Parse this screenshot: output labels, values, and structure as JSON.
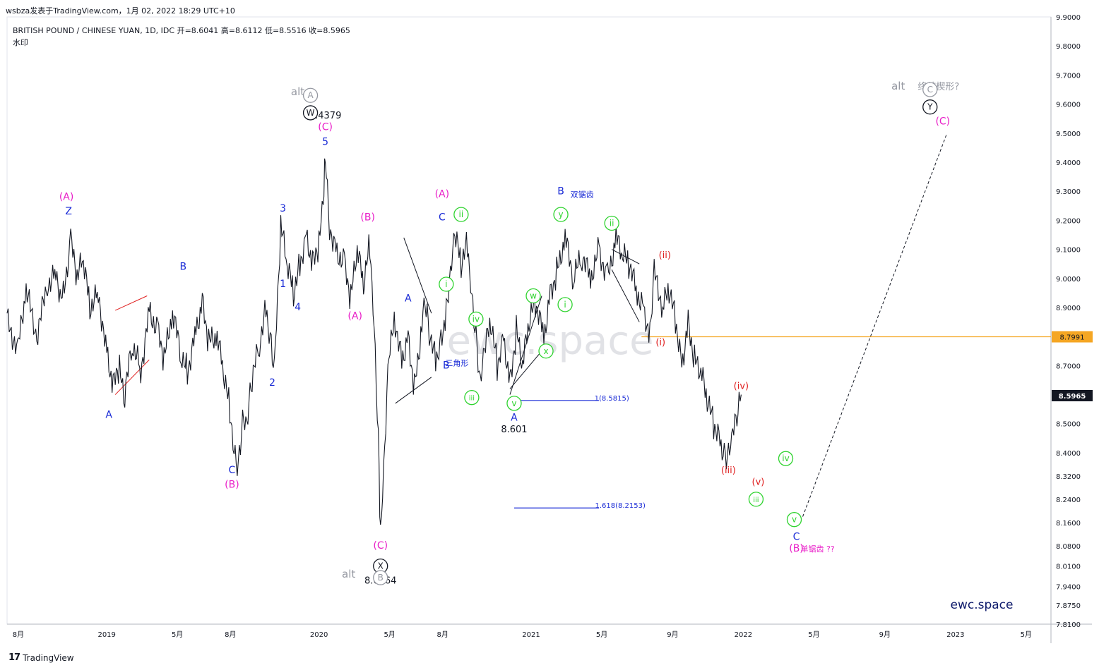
{
  "header": {
    "publish_line": "wsbza发表于TradingView.com，1月 02, 2022 18:29 UTC+10",
    "symbol_line": "BRITISH POUND / CHINESE YUAN, 1D, IDC  开=8.6041  高=8.6112  低=8.5516  收=8.5965",
    "watermark_label": "水印"
  },
  "footer": {
    "brand": "TradingView",
    "logo": "17"
  },
  "watermark": "ewc.space",
  "brand_corner": "ewc.space",
  "colors": {
    "price": "#131722",
    "blue": "#1a2bd6",
    "magenta": "#e91ec8",
    "green": "#2ed32e",
    "red": "#e02020",
    "gray": "#9598a1",
    "orange": "#f5a623"
  },
  "chart_data": {
    "type": "line",
    "title": "",
    "symbol": "BRITISH POUND / CHINESE YUAN",
    "interval": "1D",
    "source": "IDC",
    "ohlc": {
      "open": 8.6041,
      "high": 8.6112,
      "low": 8.5516,
      "close": 8.5965
    },
    "ylim": [
      7.81,
      9.9
    ],
    "y_ticks": [
      9.9,
      9.8,
      9.7,
      9.6,
      9.5,
      9.4,
      9.3,
      9.2,
      9.1,
      9.0,
      8.9,
      8.8,
      8.7,
      8.6,
      8.5,
      8.4,
      8.32,
      8.24,
      8.16,
      8.08,
      8.01,
      7.94,
      7.875,
      7.81
    ],
    "y_tick_labels": [
      "9.9000",
      "9.8000",
      "9.7000",
      "9.6000",
      "9.5000",
      "9.4000",
      "9.3000",
      "9.2000",
      "9.1000",
      "9.0000",
      "8.9000",
      "8.8000",
      "8.7000",
      "8.6000",
      "8.5000",
      "8.4000",
      "8.3200",
      "8.2400",
      "8.1600",
      "8.0800",
      "8.0100",
      "7.9400",
      "7.8750",
      "7.8100"
    ],
    "x_ticks": [
      {
        "t": 2018.583,
        "label": "8月"
      },
      {
        "t": 2019.0,
        "label": "2019"
      },
      {
        "t": 2019.333,
        "label": "5月"
      },
      {
        "t": 2019.583,
        "label": "8月"
      },
      {
        "t": 2020.0,
        "label": "2020"
      },
      {
        "t": 2020.333,
        "label": "5月"
      },
      {
        "t": 2020.583,
        "label": "8月"
      },
      {
        "t": 2021.0,
        "label": "2021"
      },
      {
        "t": 2021.333,
        "label": "5月"
      },
      {
        "t": 2021.667,
        "label": "9月"
      },
      {
        "t": 2022.0,
        "label": "2022"
      },
      {
        "t": 2022.333,
        "label": "5月"
      },
      {
        "t": 2022.667,
        "label": "9月"
      },
      {
        "t": 2023.0,
        "label": "2023"
      },
      {
        "t": 2023.333,
        "label": "5月"
      }
    ],
    "xlim": [
      2018.53,
      2023.45
    ],
    "series": [
      {
        "values": [
          [
            2018.53,
            8.86
          ],
          [
            2018.58,
            8.75
          ],
          [
            2018.62,
            8.96
          ],
          [
            2018.67,
            8.8
          ],
          [
            2018.72,
            8.98
          ],
          [
            2018.76,
            9.02
          ],
          [
            2018.79,
            8.92
          ],
          [
            2018.83,
            9.13
          ],
          [
            2018.86,
            9.0
          ],
          [
            2018.89,
            9.07
          ],
          [
            2018.92,
            8.9
          ],
          [
            2018.96,
            8.95
          ],
          [
            2019.0,
            8.74
          ],
          [
            2019.03,
            8.63
          ],
          [
            2019.06,
            8.7
          ],
          [
            2019.08,
            8.57
          ],
          [
            2019.12,
            8.78
          ],
          [
            2019.16,
            8.68
          ],
          [
            2019.2,
            8.89
          ],
          [
            2019.24,
            8.82
          ],
          [
            2019.27,
            8.72
          ],
          [
            2019.31,
            8.88
          ],
          [
            2019.35,
            8.74
          ],
          [
            2019.38,
            8.68
          ],
          [
            2019.42,
            8.82
          ],
          [
            2019.45,
            8.92
          ],
          [
            2019.48,
            8.78
          ],
          [
            2019.52,
            8.8
          ],
          [
            2019.55,
            8.68
          ],
          [
            2019.58,
            8.55
          ],
          [
            2019.6,
            8.42
          ],
          [
            2019.62,
            8.35
          ],
          [
            2019.64,
            8.5
          ],
          [
            2019.66,
            8.48
          ],
          [
            2019.68,
            8.63
          ],
          [
            2019.72,
            8.78
          ],
          [
            2019.75,
            8.9
          ],
          [
            2019.77,
            8.8
          ],
          [
            2019.79,
            8.68
          ],
          [
            2019.82,
            9.18
          ],
          [
            2019.85,
            9.05
          ],
          [
            2019.88,
            8.95
          ],
          [
            2019.91,
            9.05
          ],
          [
            2019.94,
            9.15
          ],
          [
            2019.97,
            9.05
          ],
          [
            2020.0,
            9.12
          ],
          [
            2020.02,
            9.25
          ],
          [
            2020.03,
            9.44
          ],
          [
            2020.05,
            9.18
          ],
          [
            2020.08,
            9.1
          ],
          [
            2020.12,
            9.05
          ],
          [
            2020.15,
            8.93
          ],
          [
            2020.18,
            9.1
          ],
          [
            2020.21,
            8.98
          ],
          [
            2020.24,
            9.12
          ],
          [
            2020.26,
            8.85
          ],
          [
            2020.28,
            8.45
          ],
          [
            2020.29,
            8.1
          ],
          [
            2020.31,
            8.4
          ],
          [
            2020.33,
            8.75
          ],
          [
            2020.36,
            8.85
          ],
          [
            2020.39,
            8.72
          ],
          [
            2020.42,
            8.8
          ],
          [
            2020.45,
            8.62
          ],
          [
            2020.48,
            8.8
          ],
          [
            2020.5,
            8.92
          ],
          [
            2020.52,
            8.82
          ],
          [
            2020.55,
            8.72
          ],
          [
            2020.57,
            8.78
          ],
          [
            2020.6,
            8.88
          ],
          [
            2020.62,
            9.0
          ],
          [
            2020.64,
            9.15
          ],
          [
            2020.67,
            9.05
          ],
          [
            2020.7,
            9.12
          ],
          [
            2020.72,
            8.95
          ],
          [
            2020.74,
            8.8
          ],
          [
            2020.76,
            8.62
          ],
          [
            2020.78,
            8.75
          ],
          [
            2020.81,
            8.85
          ],
          [
            2020.84,
            8.7
          ],
          [
            2020.87,
            8.8
          ],
          [
            2020.9,
            8.64
          ],
          [
            2020.93,
            8.82
          ],
          [
            2020.96,
            8.7
          ],
          [
            2020.99,
            8.85
          ],
          [
            2021.02,
            8.92
          ],
          [
            2021.06,
            8.8
          ],
          [
            2021.09,
            8.95
          ],
          [
            2021.12,
            9.02
          ],
          [
            2021.16,
            9.14
          ],
          [
            2021.2,
            9.0
          ],
          [
            2021.24,
            9.08
          ],
          [
            2021.28,
            9.0
          ],
          [
            2021.32,
            9.1
          ],
          [
            2021.36,
            9.0
          ],
          [
            2021.4,
            9.14
          ],
          [
            2021.43,
            9.08
          ],
          [
            2021.46,
            9.05
          ],
          [
            2021.5,
            8.95
          ],
          [
            2021.53,
            8.9
          ],
          [
            2021.56,
            8.8
          ],
          [
            2021.58,
            9.02
          ],
          [
            2021.62,
            8.9
          ],
          [
            2021.65,
            8.96
          ],
          [
            2021.68,
            8.86
          ],
          [
            2021.71,
            8.7
          ],
          [
            2021.74,
            8.85
          ],
          [
            2021.77,
            8.72
          ],
          [
            2021.8,
            8.68
          ],
          [
            2021.83,
            8.58
          ],
          [
            2021.86,
            8.5
          ],
          [
            2021.89,
            8.44
          ],
          [
            2021.91,
            8.4
          ],
          [
            2021.93,
            8.38
          ],
          [
            2021.95,
            8.46
          ],
          [
            2021.97,
            8.52
          ],
          [
            2021.99,
            8.6
          ]
        ]
      }
    ],
    "annotations": [
      {
        "text": "9.4379",
        "t": 2020.03,
        "y": 9.55,
        "color": "#131722",
        "size": 13
      },
      {
        "text": "8.0964",
        "t": 2020.29,
        "y": 7.95,
        "color": "#131722",
        "size": 13
      },
      {
        "text": "8.601",
        "t": 2020.92,
        "y": 8.47,
        "color": "#131722",
        "size": 13
      },
      {
        "text": "Z",
        "t": 2018.82,
        "y": 9.22,
        "color": "#1a2bd6",
        "size": 14
      },
      {
        "text": "(A)",
        "t": 2018.81,
        "y": 9.27,
        "color": "#e91ec8",
        "size": 14
      },
      {
        "text": "A",
        "t": 2019.01,
        "y": 8.52,
        "color": "#1a2bd6",
        "size": 14
      },
      {
        "text": "B",
        "t": 2019.36,
        "y": 9.03,
        "color": "#1a2bd6",
        "size": 14
      },
      {
        "text": "C",
        "t": 2019.59,
        "y": 8.33,
        "color": "#1a2bd6",
        "size": 14
      },
      {
        "text": "(B)",
        "t": 2019.59,
        "y": 8.28,
        "color": "#e91ec8",
        "size": 14
      },
      {
        "text": "1",
        "t": 2019.83,
        "y": 8.97,
        "color": "#1a2bd6",
        "size": 14
      },
      {
        "text": "2",
        "t": 2019.78,
        "y": 8.63,
        "color": "#1a2bd6",
        "size": 14
      },
      {
        "text": "3",
        "t": 2019.83,
        "y": 9.23,
        "color": "#1a2bd6",
        "size": 14
      },
      {
        "text": "4",
        "t": 2019.9,
        "y": 8.89,
        "color": "#1a2bd6",
        "size": 14
      },
      {
        "text": "5",
        "t": 2020.03,
        "y": 9.46,
        "color": "#1a2bd6",
        "size": 14
      },
      {
        "text": "(C)",
        "t": 2020.03,
        "y": 9.51,
        "color": "#e91ec8",
        "size": 14
      },
      {
        "text": "(A)",
        "t": 2020.17,
        "y": 8.86,
        "color": "#e91ec8",
        "size": 14
      },
      {
        "text": "(B)",
        "t": 2020.23,
        "y": 9.2,
        "color": "#e91ec8",
        "size": 14
      },
      {
        "text": "(C)",
        "t": 2020.29,
        "y": 8.07,
        "color": "#e91ec8",
        "size": 14
      },
      {
        "text": "A",
        "t": 2020.42,
        "y": 8.92,
        "color": "#1a2bd6",
        "size": 14
      },
      {
        "text": "B",
        "t": 2020.6,
        "y": 8.69,
        "color": "#1a2bd6",
        "size": 14
      },
      {
        "text": "三角形",
        "t": 2020.65,
        "y": 8.7,
        "color": "#1a2bd6",
        "size": 11
      },
      {
        "text": "C",
        "t": 2020.58,
        "y": 9.2,
        "color": "#1a2bd6",
        "size": 14
      },
      {
        "text": "(A)",
        "t": 2020.58,
        "y": 9.28,
        "color": "#e91ec8",
        "size": 14
      },
      {
        "text": "A",
        "t": 2020.92,
        "y": 8.51,
        "color": "#1a2bd6",
        "size": 14
      },
      {
        "text": "B",
        "t": 2021.14,
        "y": 9.29,
        "color": "#1a2bd6",
        "size": 14
      },
      {
        "text": "双锯齿",
        "t": 2021.24,
        "y": 9.28,
        "color": "#1a2bd6",
        "size": 11
      },
      {
        "text": "C",
        "t": 2022.25,
        "y": 8.1,
        "color": "#1a2bd6",
        "size": 14
      },
      {
        "text": "(B)",
        "t": 2022.25,
        "y": 8.06,
        "color": "#e91ec8",
        "size": 14
      },
      {
        "text": "单锯齿 ??",
        "t": 2022.35,
        "y": 8.06,
        "color": "#e91ec8",
        "size": 11
      },
      {
        "text": "(C)",
        "t": 2022.94,
        "y": 9.53,
        "color": "#e91ec8",
        "size": 14
      },
      {
        "text": "alt",
        "t": 2019.9,
        "y": 9.63,
        "color": "#9598a1",
        "size": 15
      },
      {
        "text": "alt",
        "t": 2020.14,
        "y": 7.97,
        "color": "#9598a1",
        "size": 15
      },
      {
        "text": "alt",
        "t": 2022.73,
        "y": 9.65,
        "color": "#9598a1",
        "size": 15
      },
      {
        "text": "终结楔形?",
        "t": 2022.92,
        "y": 9.65,
        "color": "#9598a1",
        "size": 13
      },
      {
        "text": "(i)",
        "t": 2021.61,
        "y": 8.77,
        "color": "#e02020",
        "size": 13
      },
      {
        "text": "(ii)",
        "t": 2021.63,
        "y": 9.07,
        "color": "#e02020",
        "size": 13
      },
      {
        "text": "(iii)",
        "t": 2021.93,
        "y": 8.33,
        "color": "#e02020",
        "size": 13
      },
      {
        "text": "(iv)",
        "t": 2021.99,
        "y": 8.62,
        "color": "#e02020",
        "size": 13
      },
      {
        "text": "(v)",
        "t": 2022.07,
        "y": 8.29,
        "color": "#e02020",
        "size": 13
      },
      {
        "text": "1(8.5815)",
        "t": 2021.38,
        "y": 8.58,
        "color": "#1a2bd6",
        "size": 10
      },
      {
        "text": "1.618(8.2153)",
        "t": 2021.42,
        "y": 8.21,
        "color": "#1a2bd6",
        "size": 10
      }
    ],
    "circled_labels": [
      {
        "text": "A",
        "t": 2019.96,
        "y": 9.63,
        "color": "#9598a1"
      },
      {
        "text": "W",
        "t": 2019.96,
        "y": 9.57,
        "color": "#131722"
      },
      {
        "text": "X",
        "t": 2020.29,
        "y": 8.01,
        "color": "#131722"
      },
      {
        "text": "B",
        "t": 2020.29,
        "y": 7.97,
        "color": "#9598a1"
      },
      {
        "text": "C",
        "t": 2022.88,
        "y": 9.65,
        "color": "#9598a1"
      },
      {
        "text": "Y",
        "t": 2022.88,
        "y": 9.59,
        "color": "#131722"
      },
      {
        "text": "ii",
        "t": 2020.67,
        "y": 9.22,
        "color": "#2ed32e"
      },
      {
        "text": "i",
        "t": 2020.6,
        "y": 8.98,
        "color": "#2ed32e"
      },
      {
        "text": "iv",
        "t": 2020.74,
        "y": 8.86,
        "color": "#2ed32e"
      },
      {
        "text": "iii",
        "t": 2020.72,
        "y": 8.59,
        "color": "#2ed32e"
      },
      {
        "text": "v",
        "t": 2020.92,
        "y": 8.57,
        "color": "#2ed32e"
      },
      {
        "text": "w",
        "t": 2021.01,
        "y": 8.94,
        "color": "#2ed32e"
      },
      {
        "text": "x",
        "t": 2021.07,
        "y": 8.75,
        "color": "#2ed32e"
      },
      {
        "text": "y",
        "t": 2021.14,
        "y": 9.22,
        "color": "#2ed32e"
      },
      {
        "text": "i",
        "t": 2021.16,
        "y": 8.91,
        "color": "#2ed32e"
      },
      {
        "text": "ii",
        "t": 2021.38,
        "y": 9.19,
        "color": "#2ed32e"
      },
      {
        "text": "iv",
        "t": 2022.2,
        "y": 8.38,
        "color": "#2ed32e"
      },
      {
        "text": "iii",
        "t": 2022.06,
        "y": 8.24,
        "color": "#2ed32e"
      },
      {
        "text": "v",
        "t": 2022.24,
        "y": 8.17,
        "color": "#2ed32e"
      }
    ],
    "trend_lines": [
      {
        "from": [
          2019.04,
          8.6
        ],
        "to": [
          2019.2,
          8.72
        ],
        "color": "#e02020"
      },
      {
        "from": [
          2019.04,
          8.89
        ],
        "to": [
          2019.19,
          8.94
        ],
        "color": "#e02020"
      },
      {
        "from": [
          2020.36,
          8.57
        ],
        "to": [
          2020.53,
          8.66
        ],
        "color": "#131722"
      },
      {
        "from": [
          2020.4,
          9.14
        ],
        "to": [
          2020.53,
          8.88
        ],
        "color": "#131722"
      },
      {
        "from": [
          2020.9,
          8.62
        ],
        "to": [
          2021.05,
          8.75
        ],
        "color": "#131722"
      },
      {
        "from": [
          2020.9,
          8.6
        ],
        "to": [
          2021.05,
          8.94
        ],
        "color": "#131722"
      },
      {
        "from": [
          2021.38,
          9.03
        ],
        "to": [
          2021.51,
          8.85
        ],
        "color": "#131722"
      },
      {
        "from": [
          2021.38,
          9.1
        ],
        "to": [
          2021.51,
          9.05
        ],
        "color": "#131722"
      }
    ],
    "level_lines": [
      {
        "y": 8.7991,
        "from": 2021.52,
        "to": 2023.45,
        "color": "#f5a623",
        "label": "8.7991"
      },
      {
        "y": 8.58,
        "from": 2020.92,
        "to": 2021.32,
        "color": "#1a2bd6"
      },
      {
        "y": 8.21,
        "from": 2020.92,
        "to": 2021.32,
        "color": "#1a2bd6"
      }
    ],
    "projection": {
      "from": [
        2022.28,
        8.18
      ],
      "to": [
        2022.96,
        9.5
      ],
      "style": "dashed"
    },
    "last_price": {
      "y": 8.5965,
      "label": "8.5965"
    },
    "grid": false,
    "legend": "none"
  }
}
